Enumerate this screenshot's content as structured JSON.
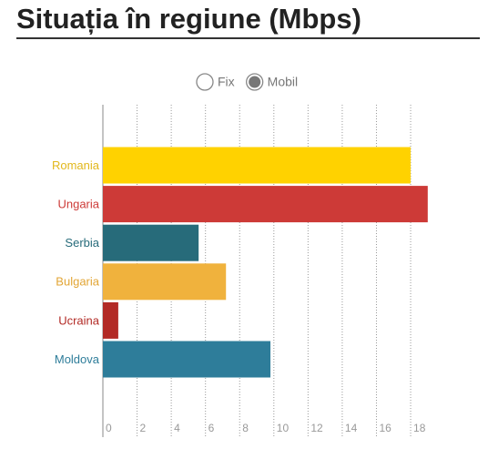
{
  "toggle": {
    "options": [
      "Fix",
      "Mobil"
    ],
    "selected": "Mobil"
  },
  "chart_data": {
    "type": "bar",
    "orientation": "horizontal",
    "title": "Situația în regiune (Mbps)",
    "categories": [
      "Romania",
      "Ungaria",
      "Serbia",
      "Bulgaria",
      "Ucraina",
      "Moldova"
    ],
    "values": [
      18.0,
      19.0,
      5.6,
      7.2,
      0.9,
      9.8
    ],
    "colors": [
      "#ffd200",
      "#cd3a37",
      "#276b7a",
      "#f0b23d",
      "#b22a25",
      "#2e7d9a"
    ],
    "label_colors": [
      "#e2b81c",
      "#cd3a37",
      "#276b7a",
      "#e2a535",
      "#b22a25",
      "#2e7d9a"
    ],
    "xlim": [
      0,
      20
    ],
    "xticks": [
      0,
      2,
      4,
      6,
      8,
      10,
      12,
      14,
      16,
      18
    ],
    "grid": true
  }
}
